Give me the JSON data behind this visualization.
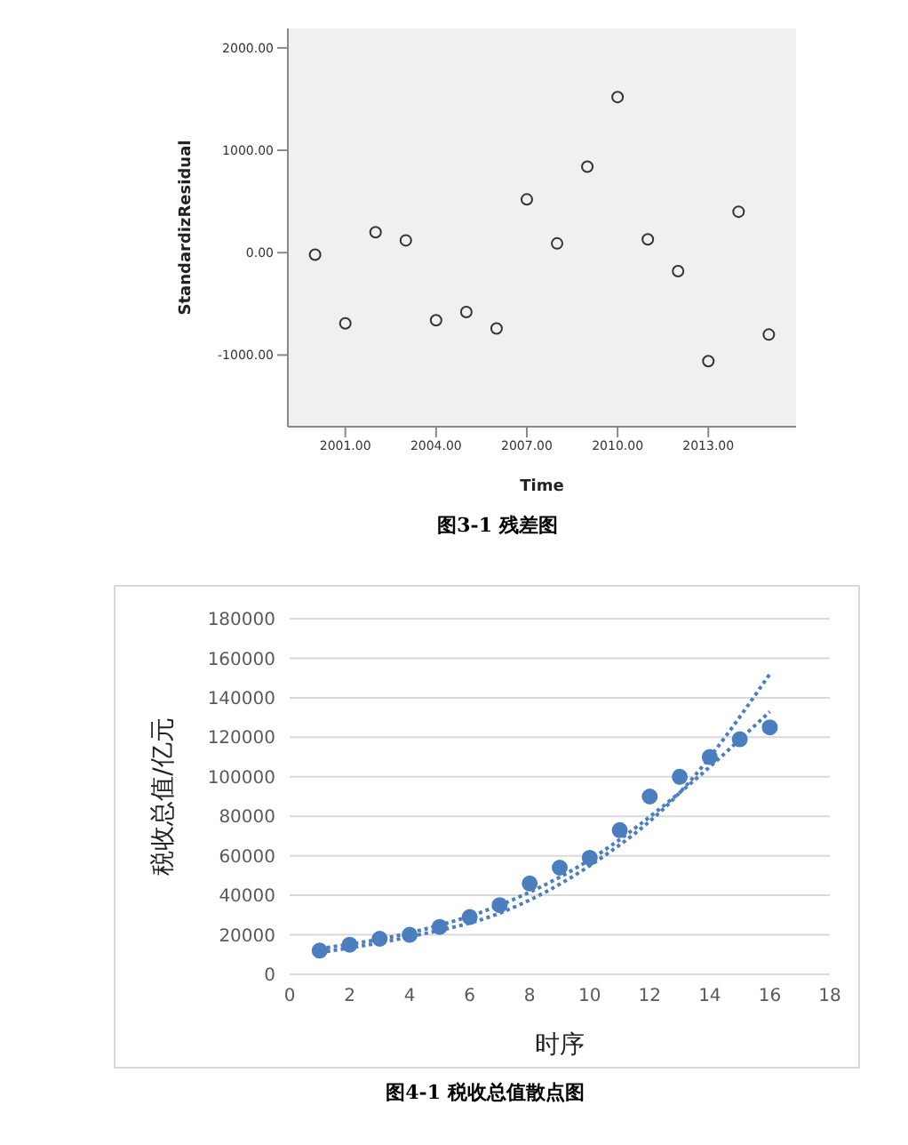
{
  "chart_data": [
    {
      "type": "scatter",
      "title": "图3-1 残差图",
      "xlabel": "Time",
      "ylabel": "StandardizResidual",
      "marker": "circle",
      "grid": false,
      "legend": false,
      "x": [
        2000,
        2001,
        2002,
        2003,
        2004,
        2005,
        2006,
        2007,
        2008,
        2009,
        2010,
        2011,
        2012,
        2013,
        2014,
        2015
      ],
      "series": [
        {
          "color": "#333333",
          "values": [
            -20,
            -690,
            200,
            120,
            -660,
            -580,
            -740,
            520,
            90,
            840,
            1520,
            130,
            -180,
            -1060,
            400,
            -800
          ]
        }
      ],
      "xlim": [
        1999.1,
        2015.9
      ],
      "xticks": [
        {
          "value": 2001,
          "label": "2001.00"
        },
        {
          "value": 2004,
          "label": "2004.00"
        },
        {
          "value": 2007,
          "label": "2007.00"
        },
        {
          "value": 2010,
          "label": "2010.00"
        },
        {
          "value": 2013,
          "label": "2013.00"
        }
      ],
      "ylim": [
        -1700,
        2190
      ],
      "yticks": [
        {
          "value": -1000,
          "label": "-1000.00"
        },
        {
          "value": 0,
          "label": "0.00"
        },
        {
          "value": 1000,
          "label": "1000.00"
        },
        {
          "value": 2000,
          "label": "2000.00"
        }
      ]
    },
    {
      "type": "scatter",
      "title": "图4-1 税收总值散点图",
      "xlabel": "时序",
      "ylabel": "税收总值/亿元",
      "marker": "circle",
      "grid": "y",
      "legend": false,
      "series": [
        {
          "color": "#4a7ebf",
          "x": [
            1,
            2,
            3,
            4,
            5,
            6,
            7,
            8,
            9,
            10,
            11,
            12,
            13,
            14,
            15,
            16
          ],
          "values": [
            12000,
            15000,
            18000,
            20000,
            24000,
            29000,
            35000,
            46000,
            54000,
            59000,
            73000,
            90000,
            100000,
            110000,
            119000,
            125000
          ]
        },
        {
          "type": "line",
          "marker": "none",
          "line_style": "dotted",
          "color": "#4a7ebf",
          "x": [
            1,
            4,
            7,
            10,
            13,
            16
          ],
          "values": [
            11000,
            19000,
            31000,
            55000,
            92000,
            152000
          ]
        },
        {
          "type": "line",
          "marker": "none",
          "line_style": "dotted",
          "color": "#4a7ebf",
          "x": [
            1,
            4,
            7,
            10,
            13,
            16
          ],
          "values": [
            13000,
            21000,
            35000,
            58000,
            92000,
            133000
          ]
        }
      ],
      "xlim": [
        0,
        18
      ],
      "xticks": [
        0,
        2,
        4,
        6,
        8,
        10,
        12,
        14,
        16,
        18
      ],
      "ylim": [
        0,
        180000
      ],
      "yticks": [
        0,
        20000,
        40000,
        60000,
        80000,
        100000,
        120000,
        140000,
        160000,
        180000
      ]
    }
  ]
}
